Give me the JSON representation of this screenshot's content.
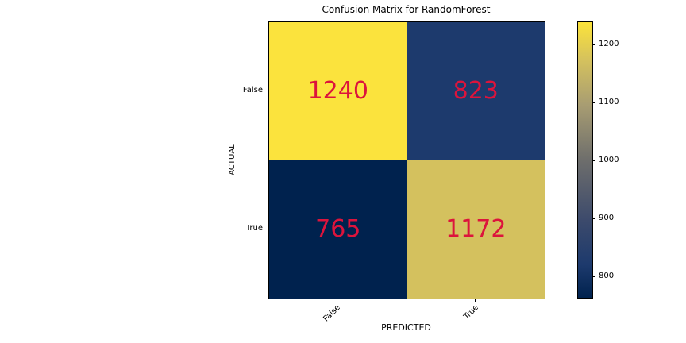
{
  "chart_data": {
    "type": "heatmap",
    "title": "Confusion Matrix for RandomForest",
    "xlabel": "PREDICTED",
    "ylabel": "ACTUAL",
    "x_ticklabels": [
      "False",
      "True"
    ],
    "y_ticklabels": [
      "False",
      "True"
    ],
    "matrix": [
      [
        1240,
        823
      ],
      [
        765,
        1172
      ]
    ],
    "vmin": 765,
    "vmax": 1240,
    "colormap": "cividis",
    "value_text_color": "#dc143c",
    "cells": [
      [
        {
          "value": "1240",
          "color": "#fbe33d"
        },
        {
          "value": "823",
          "color": "#1d3a6d"
        }
      ],
      [
        {
          "value": "765",
          "color": "#00224e"
        },
        {
          "value": "1172",
          "color": "#d4c15e"
        }
      ]
    ],
    "colorbar": {
      "ticks": [
        "1200",
        "1100",
        "1000",
        "900",
        "800"
      ],
      "gradient_stops": [
        "#fce33a 0%",
        "#d4c15e 14%",
        "#a89d72 30%",
        "#6e6e6c 50%",
        "#3c4a6c 72%",
        "#1d3a6d 88%",
        "#00224e 100%"
      ]
    },
    "legend": "none",
    "grid": false
  }
}
